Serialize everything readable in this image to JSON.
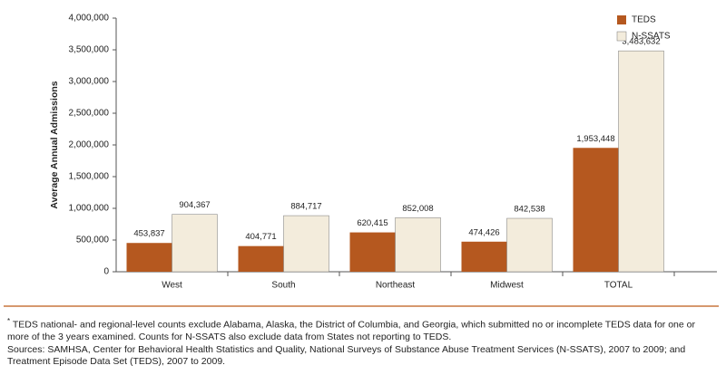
{
  "chart_data": {
    "type": "bar",
    "y_label": "Average Annual Admissions",
    "categories": [
      "West",
      "South",
      "Northeast",
      "Midwest",
      "TOTAL"
    ],
    "series": [
      {
        "name": "TEDS",
        "color": "#b5581f",
        "values": [
          453837,
          404771,
          620415,
          474426,
          1953448
        ],
        "value_labels": [
          "453,837",
          "404,771",
          "620,415",
          "474,426",
          "1,953,448"
        ]
      },
      {
        "name": "N-SSATS",
        "color": "#f3ecdc",
        "values": [
          904367,
          884717,
          852008,
          842538,
          3483632
        ],
        "value_labels": [
          "904,367",
          "884,717",
          "852,008",
          "842,538",
          "3,483,632"
        ]
      }
    ],
    "ylim": [
      0,
      4000000
    ],
    "yticks": [
      0,
      {
        "value": 500000,
        "label": "500,000"
      },
      {
        "value": 1000000,
        "label": "1,000,000"
      },
      {
        "value": 1500000,
        "label": "1,500,000"
      },
      {
        "value": 2000000,
        "label": "2,000,000"
      },
      {
        "value": 2500000,
        "label": "2,500,000"
      },
      {
        "value": 3000000,
        "label": "3,000,000"
      },
      {
        "value": 3500000,
        "label": "3,500,000"
      },
      {
        "value": 4000000,
        "label": "4,000,000"
      }
    ],
    "legend": "top-right"
  },
  "footnote": {
    "marker": "*",
    "text": "TEDS national- and regional-level counts exclude Alabama, Alaska, the District of Columbia, and Georgia, which submitted no or incomplete TEDS data for one or more of the 3 years examined. Counts for N-SSATS also exclude data from States not reporting to TEDS."
  },
  "sources": "Sources: SAMHSA, Center for Behavioral Health Statistics and Quality, National Surveys of Substance Abuse Treatment Services (N-SSATS), 2007 to 2009; and Treatment Episode Data Set (TEDS), 2007 to 2009."
}
